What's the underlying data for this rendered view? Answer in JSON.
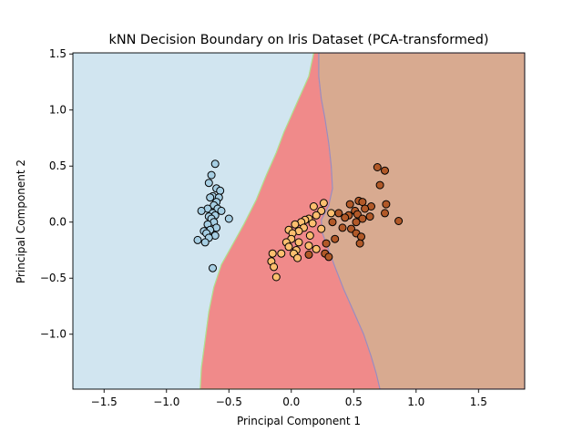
{
  "chart_data": {
    "type": "scatter",
    "title": "kNN Decision Boundary on Iris Dataset (PCA-transformed)",
    "xlabel": "Principal Component 1",
    "ylabel": "Principal Component 2",
    "xlim": [
      -1.75,
      1.87
    ],
    "ylim": [
      -1.49,
      1.51
    ],
    "x_ticks": [
      -1.5,
      -1.0,
      -0.5,
      0.0,
      0.5,
      1.0,
      1.5
    ],
    "x_tick_labels": [
      "−1.5",
      "−1.0",
      "−0.5",
      "0.0",
      "0.5",
      "1.0",
      "1.5"
    ],
    "y_ticks": [
      -1.0,
      -0.5,
      0.0,
      0.5,
      1.0,
      1.5
    ],
    "y_tick_labels": [
      "−1.0",
      "−0.5",
      "0.0",
      "0.5",
      "1.0",
      "1.5"
    ],
    "grid": false,
    "legend": "none",
    "regions": [
      {
        "color": "#d1e5f0",
        "boundary_color": "#a6cee3",
        "polygon": [
          [
            -1.75,
            1.51
          ],
          [
            0.18,
            1.51
          ],
          [
            0.14,
            1.3
          ],
          [
            0.1,
            1.2
          ],
          [
            0.06,
            1.1
          ],
          [
            0.0,
            0.95
          ],
          [
            -0.06,
            0.8
          ],
          [
            -0.12,
            0.62
          ],
          [
            -0.2,
            0.42
          ],
          [
            -0.28,
            0.2
          ],
          [
            -0.38,
            -0.02
          ],
          [
            -0.48,
            -0.22
          ],
          [
            -0.56,
            -0.38
          ],
          [
            -0.62,
            -0.58
          ],
          [
            -0.66,
            -0.8
          ],
          [
            -0.69,
            -1.05
          ],
          [
            -0.72,
            -1.3
          ],
          [
            -0.73,
            -1.49
          ],
          [
            -1.75,
            -1.49
          ]
        ]
      },
      {
        "color": "#f08a8a",
        "boundary_color": "#b2df8a",
        "polygon": [
          [
            0.18,
            1.51
          ],
          [
            0.22,
            1.51
          ],
          [
            0.22,
            1.3
          ],
          [
            0.24,
            1.1
          ],
          [
            0.27,
            0.92
          ],
          [
            0.3,
            0.7
          ],
          [
            0.32,
            0.5
          ],
          [
            0.33,
            0.3
          ],
          [
            0.3,
            0.15
          ],
          [
            0.24,
            0.02
          ],
          [
            0.25,
            -0.1
          ],
          [
            0.3,
            -0.25
          ],
          [
            0.35,
            -0.4
          ],
          [
            0.42,
            -0.6
          ],
          [
            0.5,
            -0.8
          ],
          [
            0.58,
            -1.0
          ],
          [
            0.64,
            -1.2
          ],
          [
            0.68,
            -1.35
          ],
          [
            0.71,
            -1.49
          ],
          [
            -0.73,
            -1.49
          ],
          [
            -0.72,
            -1.3
          ],
          [
            -0.69,
            -1.05
          ],
          [
            -0.66,
            -0.8
          ],
          [
            -0.62,
            -0.58
          ],
          [
            -0.56,
            -0.38
          ],
          [
            -0.48,
            -0.22
          ],
          [
            -0.38,
            -0.02
          ],
          [
            -0.28,
            0.2
          ],
          [
            -0.2,
            0.42
          ],
          [
            -0.12,
            0.62
          ],
          [
            -0.06,
            0.8
          ],
          [
            0.0,
            0.95
          ],
          [
            0.06,
            1.1
          ],
          [
            0.1,
            1.2
          ],
          [
            0.14,
            1.3
          ]
        ]
      },
      {
        "color": "#d8aa90",
        "boundary_color": "#9e88c0",
        "polygon": [
          [
            0.22,
            1.51
          ],
          [
            1.87,
            1.51
          ],
          [
            1.87,
            -1.49
          ],
          [
            0.71,
            -1.49
          ],
          [
            0.68,
            -1.35
          ],
          [
            0.64,
            -1.2
          ],
          [
            0.58,
            -1.0
          ],
          [
            0.5,
            -0.8
          ],
          [
            0.42,
            -0.6
          ],
          [
            0.35,
            -0.4
          ],
          [
            0.3,
            -0.25
          ],
          [
            0.25,
            -0.1
          ],
          [
            0.24,
            0.02
          ],
          [
            0.3,
            0.15
          ],
          [
            0.33,
            0.3
          ],
          [
            0.32,
            0.5
          ],
          [
            0.3,
            0.7
          ],
          [
            0.27,
            0.92
          ],
          [
            0.24,
            1.1
          ],
          [
            0.22,
            1.3
          ]
        ]
      }
    ],
    "series": [
      {
        "color": "#a6cee3",
        "points": [
          [
            -0.61,
            0.52
          ],
          [
            -0.64,
            0.42
          ],
          [
            -0.66,
            0.35
          ],
          [
            -0.6,
            0.3
          ],
          [
            -0.57,
            0.28
          ],
          [
            -0.63,
            0.23
          ],
          [
            -0.58,
            0.22
          ],
          [
            -0.65,
            0.22
          ],
          [
            -0.6,
            0.18
          ],
          [
            -0.62,
            0.15
          ],
          [
            -0.67,
            0.12
          ],
          [
            -0.59,
            0.12
          ],
          [
            -0.56,
            0.1
          ],
          [
            -0.72,
            0.1
          ],
          [
            -0.63,
            0.08
          ],
          [
            -0.61,
            0.06
          ],
          [
            -0.66,
            0.05
          ],
          [
            -0.64,
            0.03
          ],
          [
            -0.5,
            0.03
          ],
          [
            -0.62,
            0.0
          ],
          [
            -0.67,
            -0.02
          ],
          [
            -0.6,
            -0.05
          ],
          [
            -0.65,
            -0.07
          ],
          [
            -0.7,
            -0.08
          ],
          [
            -0.68,
            -0.1
          ],
          [
            -0.61,
            -0.12
          ],
          [
            -0.66,
            -0.14
          ],
          [
            -0.75,
            -0.16
          ],
          [
            -0.69,
            -0.18
          ],
          [
            -0.63,
            -0.41
          ]
        ]
      },
      {
        "color": "#fdbf6f",
        "points": [
          [
            0.18,
            0.14
          ],
          [
            0.26,
            0.17
          ],
          [
            0.24,
            0.1
          ],
          [
            0.2,
            0.06
          ],
          [
            0.14,
            0.03
          ],
          [
            0.11,
            0.02
          ],
          [
            0.17,
            -0.01
          ],
          [
            0.08,
            0.0
          ],
          [
            0.03,
            -0.02
          ],
          [
            0.1,
            -0.05
          ],
          [
            -0.02,
            -0.07
          ],
          [
            0.06,
            -0.08
          ],
          [
            0.01,
            -0.1
          ],
          [
            0.15,
            -0.12
          ],
          [
            0.0,
            -0.15
          ],
          [
            -0.04,
            -0.18
          ],
          [
            0.06,
            -0.18
          ],
          [
            0.14,
            -0.21
          ],
          [
            -0.02,
            -0.22
          ],
          [
            0.04,
            -0.25
          ],
          [
            0.2,
            -0.24
          ],
          [
            -0.08,
            -0.28
          ],
          [
            -0.15,
            -0.28
          ],
          [
            0.02,
            -0.28
          ],
          [
            0.05,
            -0.32
          ],
          [
            -0.16,
            -0.35
          ],
          [
            -0.14,
            -0.4
          ],
          [
            -0.12,
            -0.49
          ],
          [
            0.24,
            -0.06
          ],
          [
            0.32,
            0.08
          ]
        ]
      },
      {
        "color": "#b15928",
        "points": [
          [
            0.69,
            0.49
          ],
          [
            0.75,
            0.46
          ],
          [
            0.71,
            0.33
          ],
          [
            0.54,
            0.19
          ],
          [
            0.57,
            0.18
          ],
          [
            0.47,
            0.16
          ],
          [
            0.76,
            0.16
          ],
          [
            0.64,
            0.14
          ],
          [
            0.59,
            0.12
          ],
          [
            0.51,
            0.1
          ],
          [
            0.38,
            0.08
          ],
          [
            0.53,
            0.07
          ],
          [
            0.46,
            0.06
          ],
          [
            0.63,
            0.05
          ],
          [
            0.57,
            0.03
          ],
          [
            0.43,
            0.04
          ],
          [
            0.75,
            0.08
          ],
          [
            0.52,
            0.0
          ],
          [
            0.33,
            0.0
          ],
          [
            0.86,
            0.01
          ],
          [
            0.41,
            -0.05
          ],
          [
            0.48,
            -0.06
          ],
          [
            0.52,
            -0.1
          ],
          [
            0.56,
            -0.13
          ],
          [
            0.35,
            -0.15
          ],
          [
            0.28,
            -0.19
          ],
          [
            0.27,
            -0.28
          ],
          [
            0.14,
            -0.29
          ],
          [
            0.3,
            -0.31
          ],
          [
            0.55,
            -0.19
          ]
        ]
      }
    ]
  }
}
